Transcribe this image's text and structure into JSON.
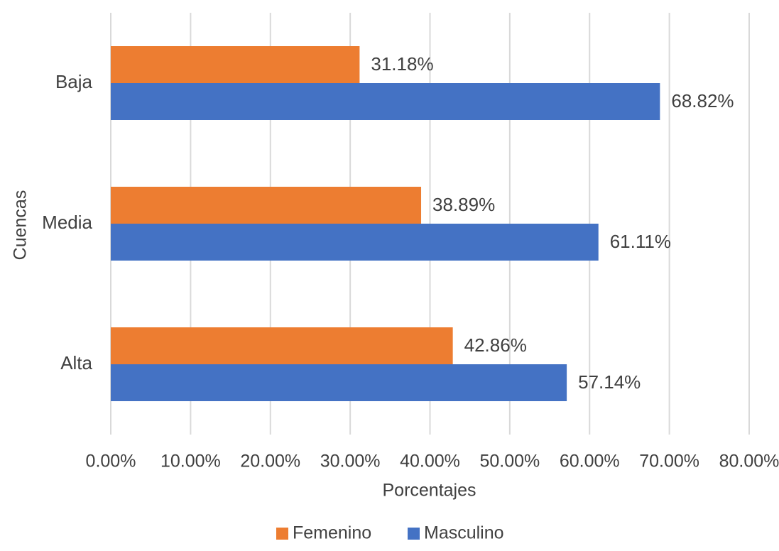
{
  "chart_data": {
    "type": "bar",
    "orientation": "horizontal",
    "categories": [
      "Baja",
      "Media",
      "Alta"
    ],
    "series": [
      {
        "name": "Femenino",
        "color": "#ed7d31",
        "values": [
          31.18,
          38.89,
          42.86
        ],
        "labels": [
          "31.18%",
          "38.89%",
          "42.86%"
        ]
      },
      {
        "name": "Masculino",
        "color": "#4472c4",
        "values": [
          68.82,
          61.11,
          57.14
        ],
        "labels": [
          "68.82%",
          "61.11%",
          "57.14%"
        ]
      }
    ],
    "xlim": [
      0,
      80
    ],
    "x_ticks": [
      0,
      10,
      20,
      30,
      40,
      50,
      60,
      70,
      80
    ],
    "x_tick_labels": [
      "0.00%",
      "10.00%",
      "20.00%",
      "30.00%",
      "40.00%",
      "50.00%",
      "60.00%",
      "70.00%",
      "80.00%"
    ],
    "xlabel": "Porcentajes",
    "ylabel": "Cuencas",
    "title": "",
    "grid": "vertical",
    "legend_position": "bottom"
  }
}
